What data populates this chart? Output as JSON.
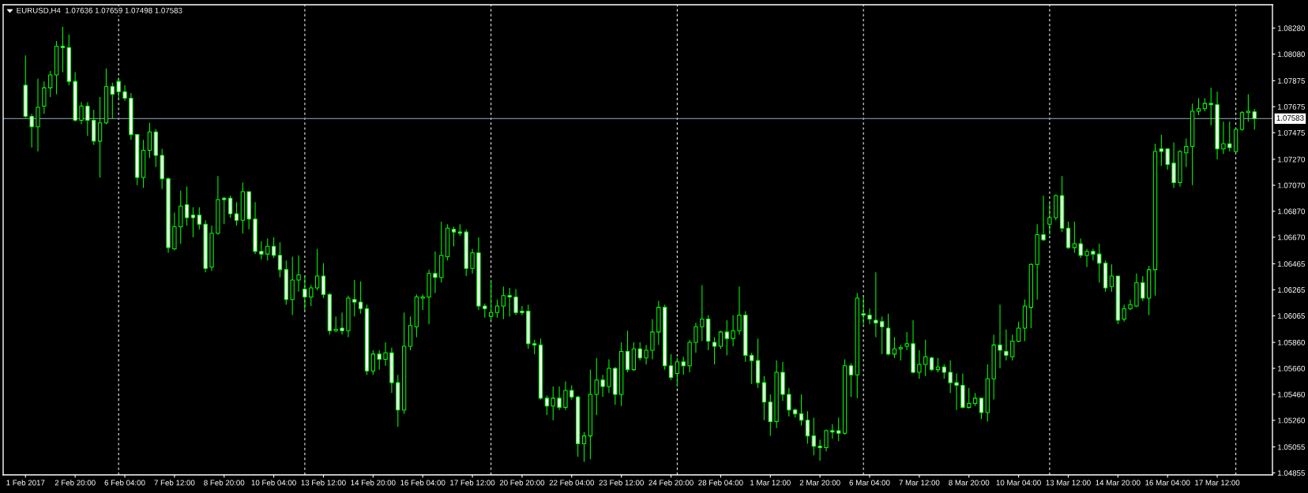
{
  "chart_data": {
    "type": "candlestick",
    "title": "EURUSD,H4  1.07636 1.07659 1.07498 1.07583",
    "categories": [
      "1 Feb 2017",
      null,
      null,
      null,
      null,
      null,
      null,
      null,
      "2 Feb 20:00",
      null,
      null,
      null,
      null,
      null,
      null,
      null,
      "6 Feb 04:00",
      null,
      null,
      null,
      null,
      null,
      null,
      null,
      "7 Feb 12:00",
      null,
      null,
      null,
      null,
      null,
      null,
      null,
      "8 Feb 20:00",
      null,
      null,
      null,
      null,
      null,
      null,
      null,
      "10 Feb 04:00",
      null,
      null,
      null,
      null,
      null,
      null,
      null,
      "13 Feb 12:00",
      null,
      null,
      null,
      null,
      null,
      null,
      null,
      "14 Feb 20:00",
      null,
      null,
      null,
      null,
      null,
      null,
      null,
      "16 Feb 04:00",
      null,
      null,
      null,
      null,
      null,
      null,
      null,
      "17 Feb 12:00",
      null,
      null,
      null,
      null,
      null,
      null,
      null,
      "20 Feb 20:00",
      null,
      null,
      null,
      null,
      null,
      null,
      null,
      "22 Feb 04:00",
      null,
      null,
      null,
      null,
      null,
      null,
      null,
      "23 Feb 12:00",
      null,
      null,
      null,
      null,
      null,
      null,
      null,
      "24 Feb 20:00",
      null,
      null,
      null,
      null,
      null,
      null,
      null,
      "28 Feb 04:00",
      null,
      null,
      null,
      null,
      null,
      null,
      null,
      "1 Mar 12:00",
      null,
      null,
      null,
      null,
      null,
      null,
      null,
      "2 Mar 20:00",
      null,
      null,
      null,
      null,
      null,
      null,
      null,
      "6 Mar 04:00",
      null,
      null,
      null,
      null,
      null,
      null,
      null,
      "7 Mar 12:00",
      null,
      null,
      null,
      null,
      null,
      null,
      null,
      "8 Mar 20:00",
      null,
      null,
      null,
      null,
      null,
      null,
      null,
      "10 Mar 04:00",
      null,
      null,
      null,
      null,
      null,
      null,
      null,
      "13 Mar 12:00",
      null,
      null,
      null,
      null,
      null,
      null,
      null,
      "14 Mar 20:00",
      null,
      null,
      null,
      null,
      null,
      null,
      null,
      "16 Mar 04:00",
      null,
      null,
      null,
      null,
      null,
      null,
      null,
      "17 Mar 12:00",
      null,
      null,
      null,
      null,
      null,
      null
    ],
    "ohlc": [
      [
        1.0784,
        1.0807,
        1.0759,
        1.076
      ],
      [
        1.076,
        1.0762,
        1.0736,
        1.0752
      ],
      [
        1.0752,
        1.0789,
        1.0733,
        1.0767
      ],
      [
        1.0768,
        1.0787,
        1.0762,
        1.0782
      ],
      [
        1.0782,
        1.0795,
        1.0775,
        1.0792
      ],
      [
        1.0792,
        1.0818,
        1.0777,
        1.0814
      ],
      [
        1.0814,
        1.0829,
        1.0794,
        1.0813
      ],
      [
        1.0813,
        1.0823,
        1.0784,
        1.0787
      ],
      [
        1.0787,
        1.0794,
        1.0756,
        1.0757
      ],
      [
        1.0757,
        1.0771,
        1.0754,
        1.0768
      ],
      [
        1.0768,
        1.0771,
        1.0745,
        1.0757
      ],
      [
        1.0757,
        1.0765,
        1.0738,
        1.0741
      ],
      [
        1.0741,
        1.0775,
        1.0713,
        1.0755
      ],
      [
        1.0755,
        1.0797,
        1.0754,
        1.0783
      ],
      [
        1.0783,
        1.0786,
        1.0758,
        1.0777
      ],
      [
        1.0787,
        1.079,
        1.0774,
        1.0779
      ],
      [
        1.0779,
        1.0784,
        1.0772,
        1.0774
      ],
      [
        1.0774,
        1.0778,
        1.0742,
        1.0746
      ],
      [
        1.0746,
        1.0746,
        1.0707,
        1.0713
      ],
      [
        1.0713,
        1.0742,
        1.0705,
        1.0734
      ],
      [
        1.0734,
        1.0755,
        1.0728,
        1.0748
      ],
      [
        1.0748,
        1.075,
        1.0721,
        1.073
      ],
      [
        1.073,
        1.0735,
        1.0704,
        1.0712
      ],
      [
        1.0712,
        1.0713,
        1.0655,
        1.0659
      ],
      [
        1.0658,
        1.0686,
        1.0657,
        1.0675
      ],
      [
        1.0675,
        1.0703,
        1.0662,
        1.0691
      ],
      [
        1.0692,
        1.0706,
        1.0676,
        1.0682
      ],
      [
        1.0684,
        1.069,
        1.0667,
        1.0682
      ],
      [
        1.0684,
        1.069,
        1.0673,
        1.0677
      ],
      [
        1.0677,
        1.068,
        1.064,
        1.0643
      ],
      [
        1.0644,
        1.0676,
        1.0641,
        1.067
      ],
      [
        1.067,
        1.0714,
        1.0669,
        1.0696
      ],
      [
        1.0697,
        1.0698,
        1.0677,
        1.0696
      ],
      [
        1.0697,
        1.0699,
        1.0682,
        1.0685
      ],
      [
        1.0685,
        1.0694,
        1.0676,
        1.068
      ],
      [
        1.068,
        1.0709,
        1.067,
        1.0702
      ],
      [
        1.0702,
        1.0702,
        1.0673,
        1.0681
      ],
      [
        1.0681,
        1.0694,
        1.0654,
        1.0656
      ],
      [
        1.0656,
        1.0664,
        1.065,
        1.0654
      ],
      [
        1.0654,
        1.0666,
        1.0649,
        1.066
      ],
      [
        1.066,
        1.0667,
        1.0651,
        1.0653
      ],
      [
        1.0653,
        1.0663,
        1.0636,
        1.0642
      ],
      [
        1.0642,
        1.0649,
        1.0615,
        1.0619
      ],
      [
        1.0619,
        1.0652,
        1.0607,
        1.0634
      ],
      [
        1.0634,
        1.0653,
        1.0625,
        1.0638
      ],
      [
        1.0627,
        1.0637,
        1.0611,
        1.0621
      ],
      [
        1.0621,
        1.063,
        1.0614,
        1.0628
      ],
      [
        1.0628,
        1.0658,
        1.0626,
        1.0637
      ],
      [
        1.0637,
        1.0647,
        1.062,
        1.0623
      ],
      [
        1.0623,
        1.0624,
        1.0592,
        1.0595
      ],
      [
        1.0595,
        1.0606,
        1.0594,
        1.0596
      ],
      [
        1.0597,
        1.0609,
        1.0592,
        1.0595
      ],
      [
        1.0595,
        1.0622,
        1.059,
        1.062
      ],
      [
        1.0619,
        1.0634,
        1.0606,
        1.0617
      ],
      [
        1.0617,
        1.0633,
        1.0608,
        1.0612
      ],
      [
        1.0612,
        1.0615,
        1.0561,
        1.0564
      ],
      [
        1.0564,
        1.058,
        1.0561,
        1.0577
      ],
      [
        1.0577,
        1.058,
        1.0565,
        1.0573
      ],
      [
        1.0573,
        1.0586,
        1.0568,
        1.0578
      ],
      [
        1.0578,
        1.0582,
        1.0547,
        1.0555
      ],
      [
        1.0555,
        1.0561,
        1.0521,
        1.0534
      ],
      [
        1.0534,
        1.0609,
        1.0531,
        1.0583
      ],
      [
        1.0583,
        1.0606,
        1.058,
        1.0599
      ],
      [
        1.0598,
        1.0623,
        1.059,
        1.0621
      ],
      [
        1.062,
        1.0623,
        1.0611,
        1.0621
      ],
      [
        1.0621,
        1.0642,
        1.06,
        1.0639
      ],
      [
        1.0639,
        1.0656,
        1.0624,
        1.0636
      ],
      [
        1.0636,
        1.0679,
        1.0632,
        1.0653
      ],
      [
        1.0652,
        1.0677,
        1.0649,
        1.0674
      ],
      [
        1.0673,
        1.0675,
        1.066,
        1.0671
      ],
      [
        1.0671,
        1.0677,
        1.0668,
        1.067
      ],
      [
        1.0671,
        1.0673,
        1.0637,
        1.0643
      ],
      [
        1.0643,
        1.0658,
        1.0639,
        1.0655
      ],
      [
        1.0655,
        1.0667,
        1.0611,
        1.0614
      ],
      [
        1.0614,
        1.0616,
        1.0605,
        1.0612
      ],
      [
        1.0606,
        1.0634,
        1.0603,
        1.0609
      ],
      [
        1.0609,
        1.0619,
        1.0605,
        1.0614
      ],
      [
        1.0614,
        1.0629,
        1.0604,
        1.0622
      ],
      [
        1.0622,
        1.0628,
        1.0606,
        1.0621
      ],
      [
        1.0621,
        1.0627,
        1.0607,
        1.0609
      ],
      [
        1.061,
        1.0614,
        1.0607,
        1.0609
      ],
      [
        1.061,
        1.0615,
        1.0581,
        1.0585
      ],
      [
        1.0585,
        1.0588,
        1.0577,
        1.0584
      ],
      [
        1.0584,
        1.0589,
        1.0542,
        1.0543
      ],
      [
        1.0543,
        1.0545,
        1.053,
        1.0537
      ],
      [
        1.0537,
        1.0552,
        1.0526,
        1.0543
      ],
      [
        1.0543,
        1.0552,
        1.0534,
        1.0536
      ],
      [
        1.0536,
        1.0556,
        1.0534,
        1.0549
      ],
      [
        1.0549,
        1.0553,
        1.0542,
        1.0544
      ],
      [
        1.0544,
        1.0545,
        1.0498,
        1.0508
      ],
      [
        1.0508,
        1.0517,
        1.0494,
        1.0514
      ],
      [
        1.0514,
        1.0565,
        1.0496,
        1.0546
      ],
      [
        1.0546,
        1.0574,
        1.053,
        1.0557
      ],
      [
        1.0557,
        1.0561,
        1.0544,
        1.0552
      ],
      [
        1.0552,
        1.0573,
        1.0547,
        1.0566
      ],
      [
        1.0566,
        1.0567,
        1.0538,
        1.0546
      ],
      [
        1.0546,
        1.0586,
        1.0537,
        1.0579
      ],
      [
        1.0579,
        1.0595,
        1.0563,
        1.0565
      ],
      [
        1.0565,
        1.0586,
        1.0564,
        1.0581
      ],
      [
        1.0581,
        1.0586,
        1.0572,
        1.0574
      ],
      [
        1.0574,
        1.0584,
        1.0569,
        1.058
      ],
      [
        1.058,
        1.0604,
        1.0573,
        1.0594
      ],
      [
        1.0594,
        1.0618,
        1.0584,
        1.0613
      ],
      [
        1.0613,
        1.0615,
        1.0565,
        1.0568
      ],
      [
        1.0568,
        1.0577,
        1.0557,
        1.0559
      ],
      [
        1.0562,
        1.0574,
        1.0552,
        1.0571
      ],
      [
        1.0571,
        1.0575,
        1.0561,
        1.0568
      ],
      [
        1.0568,
        1.0588,
        1.0563,
        1.0586
      ],
      [
        1.0586,
        1.0601,
        1.0578,
        1.0598
      ],
      [
        1.0598,
        1.063,
        1.0587,
        1.0604
      ],
      [
        1.0604,
        1.0607,
        1.058,
        1.0587
      ],
      [
        1.0586,
        1.059,
        1.0569,
        1.0583
      ],
      [
        1.0583,
        1.0595,
        1.0581,
        1.0594
      ],
      [
        1.0594,
        1.0603,
        1.0576,
        1.0589
      ],
      [
        1.0589,
        1.0607,
        1.0583,
        1.0595
      ],
      [
        1.0595,
        1.0629,
        1.0592,
        1.0607
      ],
      [
        1.0607,
        1.061,
        1.0571,
        1.0576
      ],
      [
        1.0576,
        1.0578,
        1.0554,
        1.0572
      ],
      [
        1.0572,
        1.0589,
        1.0551,
        1.0555
      ],
      [
        1.0555,
        1.056,
        1.0526,
        1.054
      ],
      [
        1.054,
        1.0546,
        1.0514,
        1.0525
      ],
      [
        1.0525,
        1.0572,
        1.052,
        1.0563
      ],
      [
        1.0563,
        1.0571,
        1.0541,
        1.0546
      ],
      [
        1.0546,
        1.0551,
        1.0529,
        1.0534
      ],
      [
        1.0534,
        1.0535,
        1.0528,
        1.0531
      ],
      [
        1.0531,
        1.0546,
        1.0522,
        1.0526
      ],
      [
        1.0526,
        1.0533,
        1.0508,
        1.0514
      ],
      [
        1.0514,
        1.0528,
        1.0499,
        1.0506
      ],
      [
        1.0506,
        1.0511,
        1.0495,
        1.0505
      ],
      [
        1.0505,
        1.0519,
        1.0502,
        1.0518
      ],
      [
        1.0518,
        1.0523,
        1.0512,
        1.0517
      ],
      [
        1.0518,
        1.0528,
        1.051,
        1.0516
      ],
      [
        1.0516,
        1.0573,
        1.0515,
        1.0568
      ],
      [
        1.0568,
        1.057,
        1.0544,
        1.0561
      ],
      [
        1.0561,
        1.0624,
        1.0543,
        1.062
      ],
      [
        1.0608,
        1.0621,
        1.06,
        1.0607
      ],
      [
        1.0607,
        1.0612,
        1.06,
        1.0604
      ],
      [
        1.0603,
        1.064,
        1.059,
        1.0601
      ],
      [
        1.0602,
        1.0606,
        1.0577,
        1.0598
      ],
      [
        1.0597,
        1.0608,
        1.0576,
        1.0577
      ],
      [
        1.0577,
        1.059,
        1.0574,
        1.0581
      ],
      [
        1.0581,
        1.0584,
        1.0572,
        1.0582
      ],
      [
        1.0583,
        1.0594,
        1.058,
        1.0585
      ],
      [
        1.0585,
        1.0603,
        1.0562,
        1.0563
      ],
      [
        1.0563,
        1.058,
        1.0558,
        1.0569
      ],
      [
        1.0569,
        1.0588,
        1.056,
        1.0575
      ],
      [
        1.0574,
        1.0575,
        1.0564,
        1.0565
      ],
      [
        1.0565,
        1.0574,
        1.0563,
        1.0567
      ],
      [
        1.0567,
        1.0569,
        1.0558,
        1.0563
      ],
      [
        1.0563,
        1.0572,
        1.0547,
        1.0555
      ],
      [
        1.0555,
        1.0562,
        1.0534,
        1.0553
      ],
      [
        1.0553,
        1.0562,
        1.0535,
        1.0536
      ],
      [
        1.0536,
        1.0551,
        1.0535,
        1.0539
      ],
      [
        1.0539,
        1.0547,
        1.0537,
        1.0543
      ],
      [
        1.0543,
        1.0543,
        1.0527,
        1.0532
      ],
      [
        1.0532,
        1.0569,
        1.0525,
        1.0558
      ],
      [
        1.0558,
        1.0592,
        1.0542,
        1.0584
      ],
      [
        1.0584,
        1.0615,
        1.0566,
        1.058
      ],
      [
        1.0579,
        1.0596,
        1.0572,
        1.0576
      ],
      [
        1.0575,
        1.0592,
        1.0572,
        1.0587
      ],
      [
        1.0587,
        1.0602,
        1.0586,
        1.0597
      ],
      [
        1.0597,
        1.0619,
        1.0587,
        1.0614
      ],
      [
        1.0613,
        1.0647,
        1.0597,
        1.0646
      ],
      [
        1.0646,
        1.0677,
        1.0619,
        1.0669
      ],
      [
        1.0669,
        1.0699,
        1.0664,
        1.0665
      ],
      [
        1.0677,
        1.0693,
        1.0669,
        1.0682
      ],
      [
        1.0682,
        1.07,
        1.068,
        1.0699
      ],
      [
        1.0699,
        1.0714,
        1.0671,
        1.0674
      ],
      [
        1.0674,
        1.0679,
        1.0658,
        1.0659
      ],
      [
        1.0659,
        1.0679,
        1.0655,
        1.0662
      ],
      [
        1.0662,
        1.0666,
        1.0651,
        1.0653
      ],
      [
        1.0653,
        1.0658,
        1.0644,
        1.0656
      ],
      [
        1.0656,
        1.0658,
        1.0649,
        1.0654
      ],
      [
        1.0654,
        1.0662,
        1.0632,
        1.0647
      ],
      [
        1.0647,
        1.0649,
        1.0625,
        1.0628
      ],
      [
        1.0629,
        1.0646,
        1.0625,
        1.0637
      ],
      [
        1.0637,
        1.0637,
        1.06,
        1.0603
      ],
      [
        1.0604,
        1.0615,
        1.0602,
        1.0612
      ],
      [
        1.0612,
        1.0619,
        1.0611,
        1.0615
      ],
      [
        1.0614,
        1.0639,
        1.0613,
        1.0632
      ],
      [
        1.0632,
        1.0637,
        1.0618,
        1.062
      ],
      [
        1.062,
        1.0645,
        1.0607,
        1.0642
      ],
      [
        1.0642,
        1.0739,
        1.0622,
        1.0733
      ],
      [
        1.0735,
        1.0746,
        1.0722,
        1.0733
      ],
      [
        1.0735,
        1.0735,
        1.0719,
        1.0723
      ],
      [
        1.0724,
        1.074,
        1.0705,
        1.0709
      ],
      [
        1.0709,
        1.0734,
        1.0706,
        1.0733
      ],
      [
        1.0732,
        1.0743,
        1.0721,
        1.0737
      ],
      [
        1.0737,
        1.077,
        1.0707,
        1.0764
      ],
      [
        1.0764,
        1.0774,
        1.0761,
        1.0766
      ],
      [
        1.0766,
        1.0774,
        1.0764,
        1.077
      ],
      [
        1.077,
        1.0782,
        1.0753,
        1.0769
      ],
      [
        1.0769,
        1.0779,
        1.0727,
        1.0735
      ],
      [
        1.0735,
        1.0756,
        1.0731,
        1.0739
      ],
      [
        1.0739,
        1.0756,
        1.0733,
        1.0736
      ],
      [
        1.0733,
        1.0751,
        1.0732,
        1.075
      ],
      [
        1.075,
        1.0764,
        1.0749,
        1.0763
      ],
      [
        1.0763,
        1.0777,
        1.0756,
        1.0764
      ],
      [
        1.07636,
        1.07659,
        1.07498,
        1.07583
      ]
    ],
    "color": "#00ff00",
    "colors": [
      "#ffffff",
      "#ffffff",
      "#000000",
      "#000000",
      "#000000",
      "#000000",
      "#ffffff",
      "#ffffff",
      "#ffffff",
      "#000000",
      "#ffffff",
      "#ffffff",
      "#000000",
      "#000000",
      "#ffffff",
      "#ffffff",
      "#ffffff",
      "#ffffff",
      "#ffffff",
      "#000000",
      "#000000",
      "#ffffff",
      "#ffffff",
      "#ffffff",
      "#000000",
      "#000000",
      "#ffffff",
      "#ffffff",
      "#ffffff",
      "#ffffff",
      "#000000",
      "#000000",
      "#ffffff",
      "#ffffff",
      "#ffffff",
      "#000000",
      "#ffffff",
      "#ffffff",
      "#ffffff",
      "#000000",
      "#ffffff",
      "#ffffff",
      "#ffffff",
      "#000000",
      "#000000",
      "#ffffff",
      "#000000",
      "#000000",
      "#ffffff",
      "#ffffff",
      "#000000",
      "#ffffff",
      "#000000",
      "#ffffff",
      "#ffffff",
      "#ffffff",
      "#000000",
      "#ffffff",
      "#000000",
      "#ffffff",
      "#ffffff",
      "#000000",
      "#000000",
      "#000000",
      "#000000",
      "#000000",
      "#ffffff",
      "#000000",
      "#000000",
      "#ffffff",
      "#ffffff",
      "#ffffff",
      "#000000",
      "#ffffff",
      "#ffffff",
      "#000000",
      "#000000",
      "#000000",
      "#ffffff",
      "#ffffff",
      "#ffffff",
      "#ffffff",
      "#ffffff",
      "#ffffff",
      "#ffffff",
      "#000000",
      "#ffffff",
      "#000000",
      "#ffffff",
      "#ffffff",
      "#000000",
      "#000000",
      "#000000",
      "#ffffff",
      "#000000",
      "#ffffff",
      "#000000",
      "#ffffff",
      "#000000",
      "#ffffff",
      "#000000",
      "#000000",
      "#000000",
      "#ffffff",
      "#ffffff",
      "#000000",
      "#ffffff",
      "#000000",
      "#000000",
      "#000000",
      "#ffffff",
      "#ffffff",
      "#000000",
      "#ffffff",
      "#000000",
      "#000000",
      "#ffffff",
      "#ffffff",
      "#ffffff",
      "#ffffff",
      "#ffffff",
      "#000000",
      "#ffffff",
      "#ffffff",
      "#ffffff",
      "#ffffff",
      "#ffffff",
      "#ffffff",
      "#ffffff",
      "#000000",
      "#ffffff",
      "#ffffff",
      "#000000",
      "#ffffff",
      "#000000",
      "#ffffff",
      "#ffffff",
      "#ffffff",
      "#ffffff",
      "#ffffff",
      "#000000",
      "#000000",
      "#000000",
      "#ffffff",
      "#000000",
      "#000000",
      "#ffffff",
      "#000000",
      "#ffffff",
      "#ffffff",
      "#ffffff",
      "#ffffff",
      "#000000",
      "#000000",
      "#ffffff",
      "#000000",
      "#000000",
      "#ffffff",
      "#ffffff",
      "#000000",
      "#000000",
      "#000000",
      "#000000",
      "#000000",
      "#ffffff",
      "#000000",
      "#000000",
      "#ffffff",
      "#ffffff",
      "#000000",
      "#ffffff",
      "#000000",
      "#ffffff",
      "#ffffff",
      "#ffffff",
      "#000000",
      "#ffffff",
      "#000000",
      "#000000",
      "#000000",
      "#ffffff",
      "#000000",
      "#000000",
      "#ffffff",
      "#ffffff",
      "#ffffff",
      "#000000",
      "#000000",
      "#000000",
      "#000000",
      "#000000",
      "#ffffff",
      "#ffffff",
      "#000000",
      "#ffffff",
      "#000000",
      "#000000",
      "#000000",
      "#ffffff"
    ],
    "ylim": [
      1.0484,
      1.0846
    ],
    "yticks": [
      1.04855,
      1.05055,
      {
        "value": 1.0526,
        "label": "1.05260"
      },
      {
        "value": 1.0546,
        "label": "1.05460"
      },
      {
        "value": 1.0566,
        "label": "1.05660"
      },
      {
        "value": 1.0586,
        "label": "1.05860"
      },
      1.06065,
      1.06265,
      1.06465,
      {
        "value": 1.0667,
        "label": "1.06670"
      },
      {
        "value": 1.0687,
        "label": "1.06870"
      },
      {
        "value": 1.0707,
        "label": "1.07070"
      },
      {
        "value": 1.0727,
        "label": "1.07270"
      },
      1.07475,
      1.07675,
      1.07875,
      {
        "value": 1.0808,
        "label": "1.08080"
      },
      {
        "value": 1.0828,
        "label": "1.08280"
      }
    ],
    "ref_lines": [
      {
        "axis": "y",
        "value": 1.07583,
        "label": "1.07583",
        "color": "#778899",
        "line_style": "solid"
      }
    ]
  }
}
